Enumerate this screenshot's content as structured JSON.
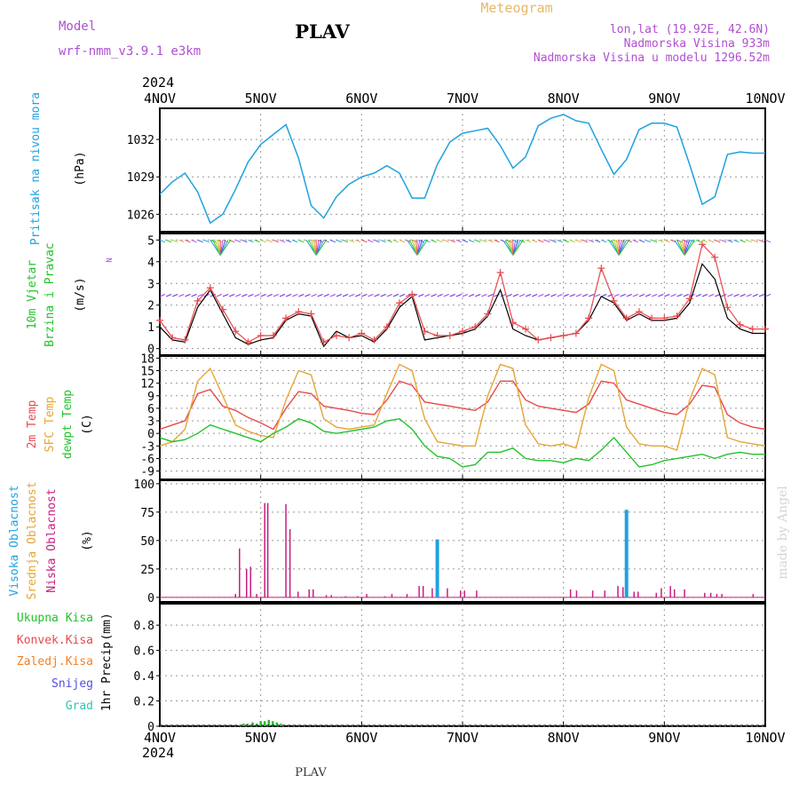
{
  "header": {
    "model_label": "Model",
    "model_value": "wrf-nmm_v3.9.1 e3km",
    "station": "PLAV",
    "product": "Meteogram",
    "lonlat": "lon,lat (19.92E, 42.6N)",
    "elevation": "Nadmorska Visina 933m",
    "model_elevation": "Nadmorska Visina u modelu 1296.52m",
    "year_top": "2024",
    "year_bottom": "2024",
    "footer_station": "PLAV",
    "credit": "made by Angel"
  },
  "colors": {
    "pressure": "#1fa2e0",
    "wind_obs": "#000000",
    "wind_model": "#e8484b",
    "temp2m": "#e8484b",
    "sfc_temp": "#e6a536",
    "dewpt": "#22c22a",
    "cloud_high": "#1fa2e0",
    "cloud_low": "#c61e80",
    "precip_total": "#22c22a",
    "convective": "#e8484b",
    "frozen": "#f0812a",
    "snow": "#5050e0",
    "hail": "#2cc5b5",
    "wind_dir_axis": "#b04fd0",
    "grid": "#999999"
  },
  "chart_data": [
    {
      "type": "line",
      "panel": "pressure",
      "ylabel_parts": [
        "Pritisak na nivou mora",
        "(hPa)"
      ],
      "x_ticks": [
        "4NOV",
        "5NOV",
        "6NOV",
        "7NOV",
        "8NOV",
        "9NOV",
        "10NOV"
      ],
      "ylim": [
        1024.6,
        1034.5
      ],
      "yticks": [
        1026,
        1029,
        1032
      ],
      "grid": true,
      "series": [
        {
          "x": [
            0,
            0.125,
            0.25,
            0.375,
            0.5,
            0.625,
            0.75,
            0.875,
            1.0,
            1.125,
            1.25,
            1.375,
            1.5,
            1.625,
            1.75,
            1.875,
            2.0,
            2.125,
            2.25,
            2.375,
            2.5,
            2.625,
            2.75,
            2.875,
            3.0,
            3.125,
            3.25,
            3.375,
            3.5,
            3.625,
            3.75,
            3.875,
            4.0,
            4.125,
            4.25,
            4.375,
            4.5,
            4.625,
            4.75,
            4.875,
            5.0,
            5.125,
            5.25,
            5.375,
            5.5,
            5.625,
            5.75,
            5.875,
            6.0
          ],
          "values": [
            1027.6,
            1028.6,
            1029.3,
            1027.8,
            1025.3,
            1026.0,
            1028.0,
            1030.2,
            1031.6,
            1032.4,
            1033.2,
            1030.5,
            1026.7,
            1025.7,
            1027.4,
            1028.4,
            1029.0,
            1029.3,
            1029.9,
            1029.3,
            1027.3,
            1027.3,
            1030.0,
            1031.8,
            1032.5,
            1032.7,
            1032.9,
            1031.5,
            1029.7,
            1030.6,
            1033.1,
            1033.7,
            1034.0,
            1033.5,
            1033.3,
            1031.2,
            1029.2,
            1030.4,
            1032.8,
            1033.3,
            1033.3,
            1033.0,
            1030.0,
            1026.8,
            1027.4,
            1030.8,
            1031.0,
            1030.9,
            1030.9
          ]
        }
      ]
    },
    {
      "type": "line",
      "panel": "wind",
      "ylabel_parts": [
        "10m Vjetar",
        "Brzina i Pravac",
        "(m/s)"
      ],
      "direction_axis_labels": [
        "N",
        "S",
        "E",
        "W",
        "<-",
        "->",
        "|"
      ],
      "x_ticks": [
        "4NOV",
        "5NOV",
        "6NOV",
        "7NOV",
        "8NOV",
        "9NOV",
        "10NOV"
      ],
      "ylim": [
        -0.3,
        5.3
      ],
      "yticks": [
        0,
        1,
        2,
        3,
        4,
        5
      ],
      "grid": true,
      "series": [
        {
          "name": "obs",
          "x": [
            0,
            0.125,
            0.25,
            0.375,
            0.5,
            0.625,
            0.75,
            0.875,
            1.0,
            1.125,
            1.25,
            1.375,
            1.5,
            1.625,
            1.75,
            1.875,
            2.0,
            2.125,
            2.25,
            2.375,
            2.5,
            2.625,
            2.75,
            2.875,
            3.0,
            3.125,
            3.25,
            3.375,
            3.5,
            3.625,
            3.75,
            3.875,
            4.0,
            4.125,
            4.25,
            4.375,
            4.5,
            4.625,
            4.75,
            4.875,
            5.0,
            5.125,
            5.25,
            5.375,
            5.5,
            5.625,
            5.75,
            5.875,
            6.0
          ],
          "values": [
            1.0,
            0.4,
            0.3,
            1.9,
            2.7,
            1.6,
            0.5,
            0.2,
            0.4,
            0.5,
            1.3,
            1.6,
            1.5,
            0.1,
            0.8,
            0.5,
            0.6,
            0.3,
            0.9,
            1.9,
            2.4,
            0.4,
            0.5,
            0.6,
            0.7,
            0.9,
            1.5,
            2.7,
            0.9,
            0.6,
            0.4,
            0.5,
            0.6,
            0.7,
            1.3,
            2.4,
            2.1,
            1.3,
            1.6,
            1.3,
            1.3,
            1.4,
            2.1,
            3.9,
            3.2,
            1.4,
            0.9,
            0.7,
            0.7
          ]
        },
        {
          "name": "model",
          "x": [
            0,
            0.125,
            0.25,
            0.375,
            0.5,
            0.625,
            0.75,
            0.875,
            1.0,
            1.125,
            1.25,
            1.375,
            1.5,
            1.625,
            1.75,
            1.875,
            2.0,
            2.125,
            2.25,
            2.375,
            2.5,
            2.625,
            2.75,
            2.875,
            3.0,
            3.125,
            3.25,
            3.375,
            3.5,
            3.625,
            3.75,
            3.875,
            4.0,
            4.125,
            4.25,
            4.375,
            4.5,
            4.625,
            4.75,
            4.875,
            5.0,
            5.125,
            5.25,
            5.375,
            5.5,
            5.625,
            5.75,
            5.875,
            6.0
          ],
          "values": [
            1.3,
            0.5,
            0.4,
            2.2,
            2.8,
            1.8,
            0.8,
            0.3,
            0.6,
            0.6,
            1.4,
            1.7,
            1.6,
            0.3,
            0.6,
            0.5,
            0.7,
            0.4,
            1.0,
            2.1,
            2.5,
            0.8,
            0.6,
            0.6,
            0.8,
            1.0,
            1.6,
            3.5,
            1.2,
            0.9,
            0.4,
            0.5,
            0.6,
            0.7,
            1.4,
            3.7,
            2.2,
            1.4,
            1.7,
            1.4,
            1.4,
            1.5,
            2.3,
            4.8,
            4.2,
            1.9,
            1.1,
            0.9,
            0.9
          ]
        }
      ]
    },
    {
      "type": "line",
      "panel": "temperature",
      "ylabel_parts": [
        "2m Temp",
        "SFC Temp",
        "dewpt Temp",
        "(C)"
      ],
      "x_ticks": [
        "4NOV",
        "5NOV",
        "6NOV",
        "7NOV",
        "8NOV",
        "9NOV",
        "10NOV"
      ],
      "ylim": [
        -11,
        18.5
      ],
      "yticks": [
        -9,
        -6,
        -3,
        0,
        3,
        6,
        9,
        12,
        15,
        18
      ],
      "grid": true,
      "series": [
        {
          "name": "2m Temp",
          "x": [
            0,
            0.125,
            0.25,
            0.375,
            0.5,
            0.625,
            0.75,
            0.875,
            1.0,
            1.125,
            1.25,
            1.375,
            1.5,
            1.625,
            1.75,
            1.875,
            2.0,
            2.125,
            2.25,
            2.375,
            2.5,
            2.625,
            2.75,
            2.875,
            3.0,
            3.125,
            3.25,
            3.375,
            3.5,
            3.625,
            3.75,
            3.875,
            4.0,
            4.125,
            4.25,
            4.375,
            4.5,
            4.625,
            4.75,
            4.875,
            5.0,
            5.125,
            5.25,
            5.375,
            5.5,
            5.625,
            5.75,
            5.875,
            6.0
          ],
          "values": [
            1.0,
            2.0,
            3.0,
            9.5,
            10.5,
            6.5,
            5.5,
            3.8,
            2.5,
            1.0,
            6.0,
            10.0,
            9.5,
            6.5,
            6.0,
            5.5,
            4.8,
            4.5,
            8.0,
            12.5,
            11.5,
            7.5,
            7.0,
            6.5,
            6.0,
            5.5,
            7.5,
            12.5,
            12.5,
            8.0,
            6.5,
            6.0,
            5.5,
            5.0,
            7.0,
            12.5,
            12.0,
            8.0,
            7.0,
            6.0,
            5.0,
            4.5,
            7.0,
            11.5,
            11.0,
            4.5,
            2.5,
            1.5,
            1.0
          ]
        },
        {
          "name": "SFC Temp",
          "x": [
            0,
            0.125,
            0.25,
            0.375,
            0.5,
            0.625,
            0.75,
            0.875,
            1.0,
            1.125,
            1.25,
            1.375,
            1.5,
            1.625,
            1.75,
            1.875,
            2.0,
            2.125,
            2.25,
            2.375,
            2.5,
            2.625,
            2.75,
            2.875,
            3.0,
            3.125,
            3.25,
            3.375,
            3.5,
            3.625,
            3.75,
            3.875,
            4.0,
            4.125,
            4.25,
            4.375,
            4.5,
            4.625,
            4.75,
            4.875,
            5.0,
            5.125,
            5.25,
            5.375,
            5.5,
            5.625,
            5.75,
            5.875,
            6.0
          ],
          "values": [
            -3.0,
            -2.0,
            1.0,
            12.5,
            15.5,
            9.0,
            2.0,
            0.5,
            -0.5,
            -1.0,
            8.0,
            15.0,
            14.0,
            3.5,
            1.5,
            1.0,
            1.5,
            2.0,
            9.5,
            16.5,
            15.0,
            3.5,
            -2.0,
            -2.5,
            -3.0,
            -3.0,
            9.0,
            16.5,
            15.5,
            2.0,
            -2.5,
            -3.0,
            -2.5,
            -3.5,
            8.5,
            16.5,
            15.0,
            1.5,
            -2.5,
            -3.0,
            -3.0,
            -4.0,
            8.0,
            15.5,
            14.0,
            -1.0,
            -2.0,
            -2.5,
            -3.0
          ]
        },
        {
          "name": "dewpt Temp",
          "x": [
            0,
            0.125,
            0.25,
            0.375,
            0.5,
            0.625,
            0.75,
            0.875,
            1.0,
            1.125,
            1.25,
            1.375,
            1.5,
            1.625,
            1.75,
            1.875,
            2.0,
            2.125,
            2.25,
            2.375,
            2.5,
            2.625,
            2.75,
            2.875,
            3.0,
            3.125,
            3.25,
            3.375,
            3.5,
            3.625,
            3.75,
            3.875,
            4.0,
            4.125,
            4.25,
            4.375,
            4.5,
            4.625,
            4.75,
            4.875,
            5.0,
            5.125,
            5.25,
            5.375,
            5.5,
            5.625,
            5.75,
            5.875,
            6.0
          ],
          "values": [
            -1.0,
            -2.0,
            -1.5,
            0.0,
            2.0,
            1.0,
            0.0,
            -1.0,
            -2.0,
            0.0,
            1.5,
            3.5,
            2.5,
            0.5,
            0.0,
            0.5,
            1.0,
            1.5,
            3.0,
            3.5,
            1.0,
            -3.0,
            -5.5,
            -6.0,
            -8.0,
            -7.5,
            -4.5,
            -4.5,
            -3.5,
            -6.0,
            -6.5,
            -6.5,
            -7.0,
            -6.0,
            -6.5,
            -4.0,
            -1.0,
            -4.5,
            -8.0,
            -7.5,
            -6.5,
            -6.0,
            -5.5,
            -5.0,
            -6.0,
            -5.0,
            -4.5,
            -5.0,
            -5.0
          ]
        }
      ]
    },
    {
      "type": "bar",
      "panel": "clouds",
      "ylabel_parts": [
        "Visoka Oblacnost",
        "Srednja Oblacnost",
        "Niska Oblacnost",
        "(%)"
      ],
      "x_ticks": [
        "4NOV",
        "5NOV",
        "6NOV",
        "7NOV",
        "8NOV",
        "9NOV",
        "10NOV"
      ],
      "ylim": [
        -4,
        103
      ],
      "yticks": [
        0,
        25,
        50,
        75,
        100
      ],
      "grid": true,
      "series": [
        {
          "name": "Visoka Oblacnost",
          "x": [
            2.75,
            4.625
          ],
          "values": [
            51,
            77
          ]
        },
        {
          "name": "Niska Oblacnost",
          "x": [
            0.75,
            0.79,
            0.86,
            0.9,
            0.96,
            1.04,
            1.07,
            1.25,
            1.29,
            1.37,
            1.48,
            1.52,
            1.65,
            1.7,
            1.84,
            1.96,
            2.05,
            2.23,
            2.3,
            2.45,
            2.57,
            2.61,
            2.7,
            2.85,
            2.98,
            3.02,
            3.14,
            4.07,
            4.13,
            4.29,
            4.41,
            4.54,
            4.59,
            4.7,
            4.74,
            4.92,
            4.97,
            5.06,
            5.1,
            5.2,
            5.4,
            5.46,
            5.52,
            5.57,
            5.88
          ],
          "values": [
            3,
            43,
            25,
            27,
            3,
            83,
            83,
            82,
            60,
            5,
            7,
            7,
            2,
            2,
            1,
            1,
            3,
            1,
            3,
            3,
            10,
            10,
            8,
            8,
            6,
            6,
            6,
            7,
            6,
            6,
            6,
            10,
            9,
            5,
            5,
            4,
            8,
            10,
            7,
            7,
            4,
            4,
            3,
            3,
            3
          ]
        }
      ]
    },
    {
      "type": "bar",
      "panel": "precipitation",
      "ylabel_parts": [
        "1hr Precip",
        "(mm)"
      ],
      "legend": [
        "Ukupna Kisa",
        "Konvek.Kisa",
        "Zaledj.Kisa",
        "Snijeg",
        "Grad"
      ],
      "x_ticks": [
        "4NOV",
        "5NOV",
        "6NOV",
        "7NOV",
        "8NOV",
        "9NOV",
        "10NOV"
      ],
      "ylim": [
        0,
        0.97
      ],
      "yticks": [
        0,
        0.2,
        0.4,
        0.6,
        0.8
      ],
      "grid": true,
      "series": [
        {
          "name": "Ukupna Kisa",
          "x": [
            0.79,
            0.83,
            0.87,
            0.92,
            0.96,
            1.0,
            1.04,
            1.08,
            1.12,
            1.16,
            1.2
          ],
          "values": [
            0.01,
            0.02,
            0.02,
            0.03,
            0.02,
            0.04,
            0.04,
            0.05,
            0.04,
            0.03,
            0.02
          ]
        }
      ]
    }
  ]
}
